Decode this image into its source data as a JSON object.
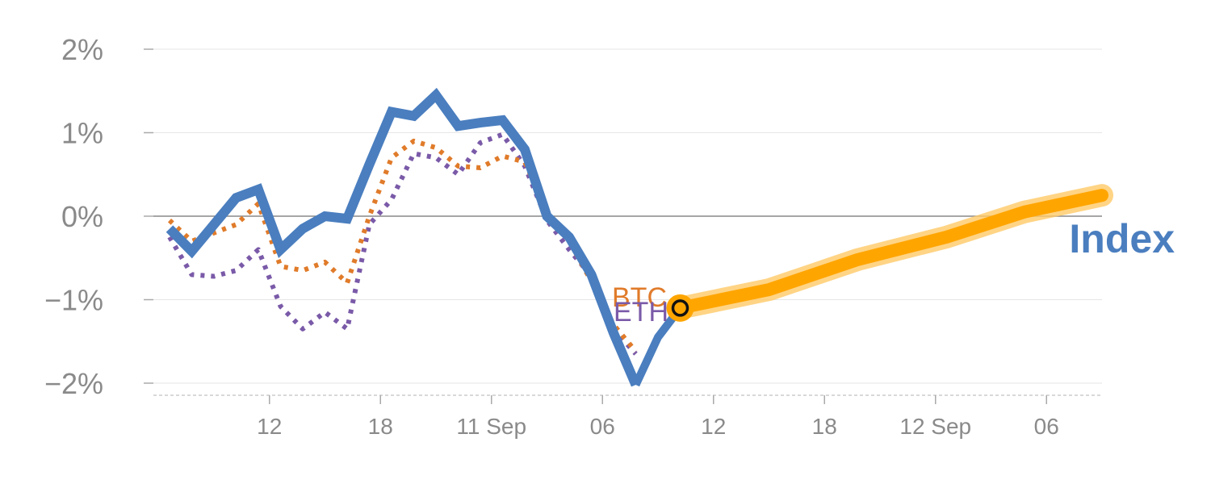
{
  "chart_data": {
    "type": "line",
    "title": "",
    "xlabel": "",
    "ylabel": "",
    "ylim": [
      -2.1,
      2.1
    ],
    "y_ticks": [
      {
        "value": 2,
        "label": "2%"
      },
      {
        "value": 1,
        "label": "1%"
      },
      {
        "value": 0,
        "label": "0%"
      },
      {
        "value": -1,
        "label": "−1%"
      },
      {
        "value": -2,
        "label": "−2%"
      }
    ],
    "x_range": [
      0,
      42.5
    ],
    "x_ticks": [
      {
        "value": 4.5,
        "label": "12"
      },
      {
        "value": 9.5,
        "label": "18"
      },
      {
        "value": 14.5,
        "label": "11 Sep"
      },
      {
        "value": 19.5,
        "label": "06"
      },
      {
        "value": 24.5,
        "label": "12"
      },
      {
        "value": 29.5,
        "label": "18"
      },
      {
        "value": 34.5,
        "label": "12 Sep"
      },
      {
        "value": 39.5,
        "label": "06"
      }
    ],
    "grid": true,
    "colors": {
      "index": "#4a7ebf",
      "btc": "#e07b2a",
      "eth": "#7a5aa8",
      "forecast": "#ffa500",
      "forecast_glow": "#ffc966",
      "grid": "#e6e6e6",
      "zero_line": "#888888",
      "tick_text": "#8a8a8a"
    },
    "series": [
      {
        "name": "Index",
        "key": "index",
        "style": "solid",
        "x": [
          0,
          1,
          2,
          3,
          4,
          5,
          6,
          7,
          8,
          9,
          10,
          11,
          12,
          13,
          14,
          15,
          16,
          17,
          18,
          19,
          20,
          21
        ],
        "y": [
          -0.15,
          -0.42,
          -0.1,
          0.22,
          0.32,
          -0.4,
          -0.15,
          0.0,
          -0.03,
          0.62,
          1.25,
          1.2,
          1.45,
          1.08,
          1.12,
          1.15,
          0.8,
          0.0,
          -0.25,
          -0.7,
          -1.4,
          -2.02
        ]
      },
      {
        "name": "BTC",
        "key": "btc",
        "style": "dotted",
        "x": [
          0,
          1,
          2,
          3,
          4,
          5,
          6,
          7,
          8,
          9,
          10,
          11,
          12,
          13,
          14,
          15,
          16,
          17,
          18,
          19,
          20,
          21
        ],
        "y": [
          -0.05,
          -0.3,
          -0.2,
          -0.1,
          0.15,
          -0.6,
          -0.65,
          -0.55,
          -0.8,
          0.0,
          0.7,
          0.9,
          0.82,
          0.6,
          0.58,
          0.72,
          0.65,
          0.05,
          -0.3,
          -0.78,
          -1.3,
          -1.62
        ]
      },
      {
        "name": "ETH",
        "key": "eth",
        "style": "dotted",
        "x": [
          0,
          1,
          2,
          3,
          4,
          5,
          6,
          7,
          8,
          9,
          10,
          11,
          12,
          13,
          14,
          15,
          16,
          17,
          18,
          19,
          20,
          21
        ],
        "y": [
          -0.25,
          -0.7,
          -0.72,
          -0.65,
          -0.4,
          -1.08,
          -1.35,
          -1.15,
          -1.35,
          -0.1,
          0.2,
          0.75,
          0.7,
          0.5,
          0.88,
          0.98,
          0.6,
          -0.05,
          -0.4,
          -0.72,
          -1.35,
          -1.65
        ]
      },
      {
        "name": "",
        "key": "tail",
        "style": "solid",
        "x": [
          21,
          22,
          23
        ],
        "y": [
          -2.02,
          -1.45,
          -1.1
        ]
      },
      {
        "name": "",
        "key": "forecast",
        "style": "forecast",
        "x": [
          23,
          27,
          31,
          35,
          38.5,
          42
        ],
        "y": [
          -1.1,
          -0.88,
          -0.52,
          -0.25,
          0.05,
          0.25
        ]
      }
    ],
    "current_point": {
      "x": 23,
      "y": -1.1
    },
    "labels": {
      "index_label": "Index",
      "btc_label": "BTC",
      "eth_label": "ETH"
    }
  }
}
